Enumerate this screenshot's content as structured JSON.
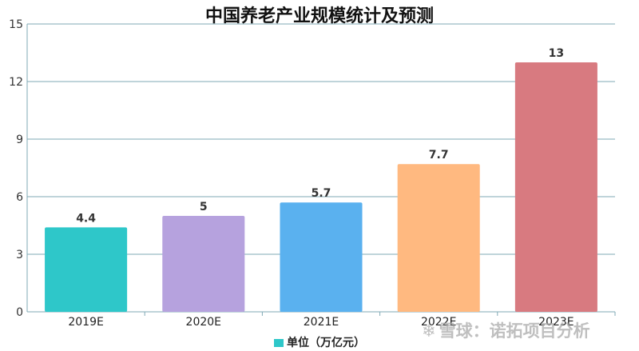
{
  "chart_data": {
    "type": "bar",
    "title": "中国养老产业规模统计及预测",
    "categories": [
      "2019E",
      "2020E",
      "2021E",
      "2022E",
      "2023E"
    ],
    "series": [
      {
        "name": "单位（万亿元）",
        "values": [
          4.4,
          5,
          5.7,
          7.7,
          13
        ]
      }
    ],
    "data_labels": [
      "4.4",
      "5",
      "5.7",
      "7.7",
      "13"
    ],
    "bar_colors": [
      "#2ec7c9",
      "#b6a2de",
      "#5ab1ef",
      "#ffb980",
      "#d87a80"
    ],
    "legend_color": "#2ec7c9",
    "ylim": [
      0,
      15
    ],
    "yticks": [
      0,
      3,
      6,
      9,
      12,
      15
    ],
    "grid": true,
    "legend_position": "bottom",
    "xlabel": "",
    "ylabel": ""
  },
  "watermark": {
    "logo": "❄",
    "text": "雪球：诺拓项目分析"
  }
}
